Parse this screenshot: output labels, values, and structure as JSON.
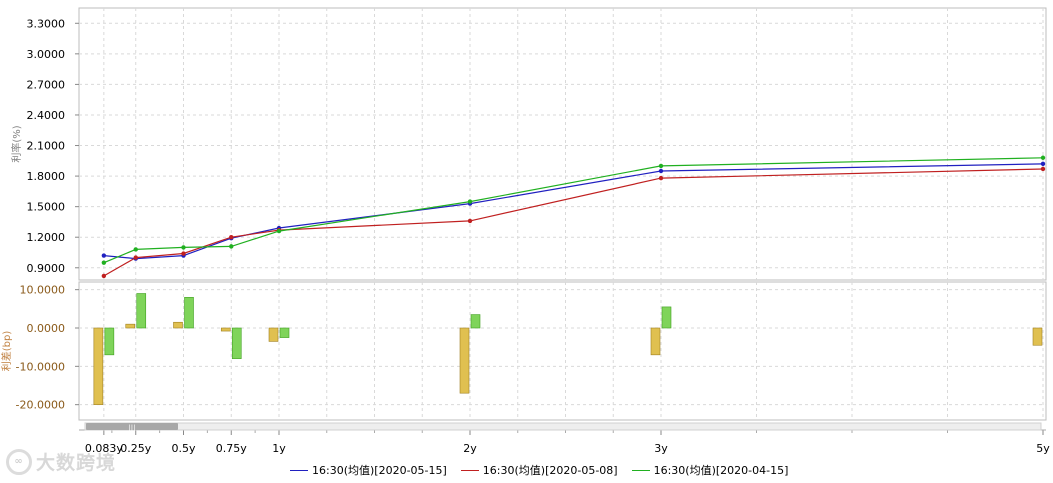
{
  "colors": {
    "series": [
      "#2020c0",
      "#c02020",
      "#20b020"
    ],
    "spread_pos": "#7fd45a",
    "spread_neg": "#e0c050",
    "grid": "#d9d9d9",
    "frame": "#bdbdbd",
    "ylabel_top": "#808080",
    "ylabel_bottom": "#c08040",
    "bottom_tick": "#8a5a1a"
  },
  "watermark": {
    "text": "大数跨境"
  },
  "chart_data": [
    {
      "type": "line",
      "ylabel": "利率(%)",
      "ylim": [
        0.78,
        3.45
      ],
      "yticks": [
        "0.9000",
        "1.2000",
        "1.5000",
        "1.8000",
        "2.1000",
        "2.4000",
        "2.7000",
        "3.0000",
        "3.3000"
      ],
      "x": [
        0.083,
        0.25,
        0.5,
        0.75,
        1,
        2,
        3,
        5
      ],
      "xlim": [
        0,
        5.03
      ],
      "xticks": [
        {
          "v": 0.083,
          "label": "0.083y"
        },
        {
          "v": 0.25,
          "label": "0.25y"
        },
        {
          "v": 0.5,
          "label": "0.5y"
        },
        {
          "v": 0.75,
          "label": "0.75y"
        },
        {
          "v": 1,
          "label": "1y"
        },
        {
          "v": 2,
          "label": "2y"
        },
        {
          "v": 3,
          "label": "3y"
        },
        {
          "v": 5,
          "label": "5y"
        }
      ],
      "grid": true,
      "legend": "bottom",
      "series": [
        {
          "name": "16:30(均值)[2020-05-15]",
          "values": [
            1.02,
            0.99,
            1.02,
            1.19,
            1.29,
            1.53,
            1.85,
            1.92
          ]
        },
        {
          "name": "16:30(均值)[2020-05-08]",
          "values": [
            0.82,
            1.0,
            1.04,
            1.2,
            1.27,
            1.36,
            1.78,
            1.87
          ]
        },
        {
          "name": "16:30(均值)[2020-04-15]",
          "values": [
            0.95,
            1.08,
            1.1,
            1.11,
            1.26,
            1.55,
            1.9,
            1.98
          ]
        }
      ]
    },
    {
      "type": "bar",
      "ylabel": "利差(bp)",
      "ylim": [
        -24,
        12
      ],
      "yticks": [
        "10.0000",
        "0.0000",
        "-10.0000",
        "-20.0000"
      ],
      "x": [
        0.083,
        0.25,
        0.5,
        0.75,
        1,
        2,
        3,
        5
      ],
      "series": [
        {
          "values": [
            -20.0,
            1.0,
            1.5,
            -0.8,
            -3.5,
            -17.0,
            -7.0,
            -4.5
          ]
        },
        {
          "values": [
            -7.0,
            9.0,
            8.0,
            -8.0,
            -2.5,
            3.5,
            5.5,
            null
          ]
        }
      ]
    }
  ]
}
